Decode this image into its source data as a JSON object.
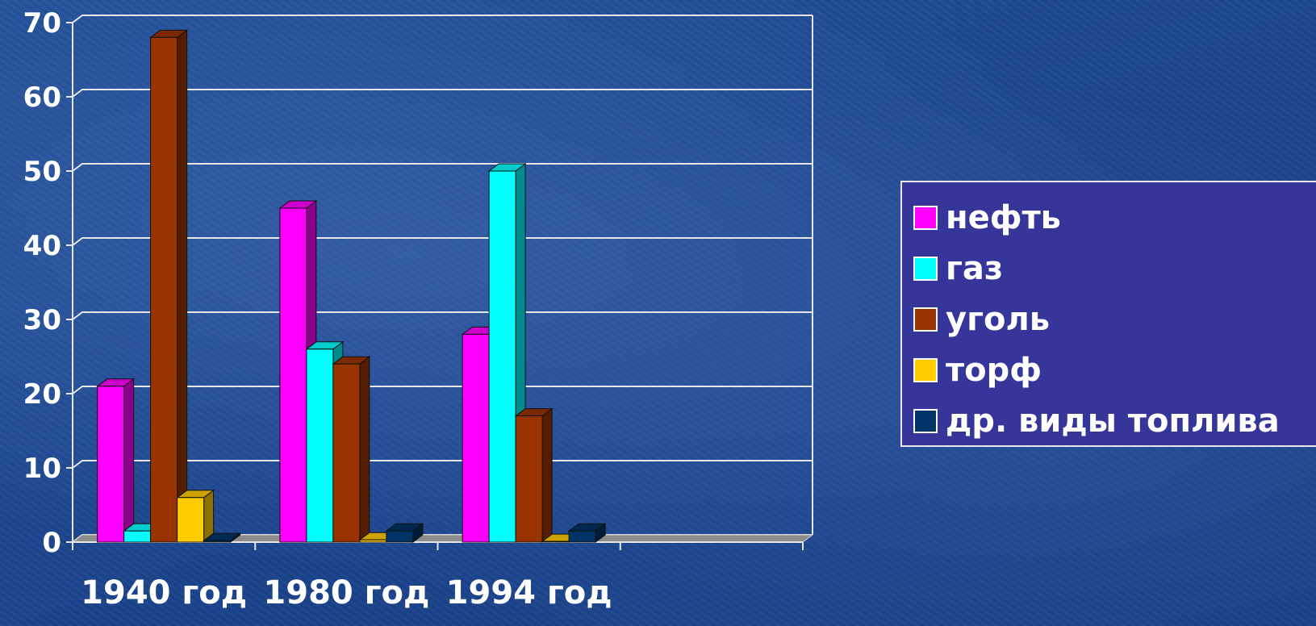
{
  "chart_data": {
    "type": "bar",
    "categories": [
      "1940 год",
      "1980 год",
      "1994 год"
    ],
    "series": [
      {
        "name": "нефть",
        "color": "#ff00ff",
        "values": [
          21,
          45,
          28
        ]
      },
      {
        "name": "газ",
        "color": "#00ffff",
        "values": [
          1.5,
          26,
          50
        ]
      },
      {
        "name": "уголь",
        "color": "#993300",
        "values": [
          68,
          24,
          17
        ]
      },
      {
        "name": "торф",
        "color": "#ffcc00",
        "values": [
          6,
          0.3,
          0.1
        ]
      },
      {
        "name": "др. виды топлива",
        "color": "#003366",
        "values": [
          0.2,
          1.5,
          1.5
        ]
      }
    ],
    "ylim": [
      0,
      70
    ],
    "yticks": [
      "0",
      "10",
      "20",
      "30",
      "40",
      "50",
      "60",
      "70"
    ],
    "grid": true,
    "legend_position": "right"
  }
}
